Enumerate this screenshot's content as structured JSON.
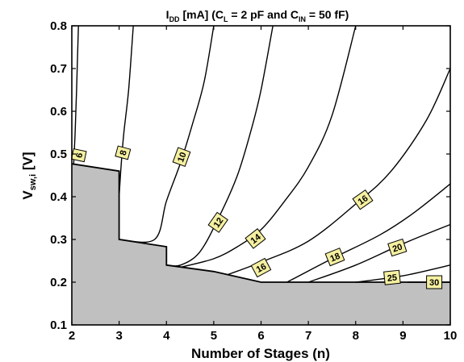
{
  "chart_data": {
    "type": "contour",
    "title": {
      "lead": "I",
      "lead_sub": "DD",
      "part1": " [mA] (C",
      "sub1": "L",
      "part2": " = 2 pF and C",
      "sub2": "IN",
      "part3": " = 50 fF)"
    },
    "xlabel": "Number of Stages (n)",
    "ylabel": {
      "main": "V",
      "sub": "sw,i",
      "unit": "  [V]"
    },
    "xlim": [
      2,
      10
    ],
    "ylim": [
      0.1,
      0.8
    ],
    "xticks": [
      "2",
      "3",
      "4",
      "5",
      "6",
      "7",
      "8",
      "9",
      "10"
    ],
    "yticks": [
      "0.1",
      "0.2",
      "0.3",
      "0.4",
      "0.5",
      "0.6",
      "0.7",
      "0.8"
    ],
    "infeasible_region": {
      "fill_color": "#c0c0c0",
      "boundary": [
        [
          2.0,
          0.477
        ],
        [
          3.0,
          0.46
        ],
        [
          3.0,
          0.3
        ],
        [
          4.0,
          0.283
        ],
        [
          4.0,
          0.24
        ],
        [
          5.0,
          0.225
        ],
        [
          6.0,
          0.2
        ],
        [
          10.0,
          0.2
        ]
      ]
    },
    "contour_lines": [
      {
        "level": "6",
        "points": [
          [
            2.04,
            0.476
          ],
          [
            2.07,
            0.55
          ],
          [
            2.1,
            0.65
          ],
          [
            2.14,
            0.8
          ]
        ]
      },
      {
        "level": "8",
        "points": [
          [
            3.0,
            0.4
          ],
          [
            3.04,
            0.47
          ],
          [
            3.1,
            0.55
          ],
          [
            3.2,
            0.65
          ],
          [
            3.3,
            0.8
          ]
        ]
      },
      {
        "level": "10",
        "points": [
          [
            3.0,
            0.3
          ],
          [
            3.75,
            0.3
          ],
          [
            4.0,
            0.39
          ],
          [
            4.3,
            0.48
          ],
          [
            4.55,
            0.57
          ],
          [
            4.8,
            0.67
          ],
          [
            5.0,
            0.8
          ]
        ]
      },
      {
        "level": "12",
        "points": [
          [
            4.0,
            0.24
          ],
          [
            4.3,
            0.24
          ],
          [
            4.7,
            0.27
          ],
          [
            5.1,
            0.35
          ],
          [
            5.5,
            0.45
          ],
          [
            5.8,
            0.56
          ],
          [
            6.0,
            0.65
          ],
          [
            6.25,
            0.8
          ]
        ]
      },
      {
        "level": "14",
        "points": [
          [
            4.3,
            0.235
          ],
          [
            5.0,
            0.255
          ],
          [
            5.5,
            0.283
          ],
          [
            6.0,
            0.323
          ],
          [
            6.5,
            0.39
          ],
          [
            7.0,
            0.47
          ],
          [
            7.5,
            0.59
          ],
          [
            8.0,
            0.8
          ]
        ]
      },
      {
        "level": "16",
        "points": [
          [
            5.3,
            0.218
          ],
          [
            6.0,
            0.247
          ],
          [
            7.0,
            0.296
          ],
          [
            8.0,
            0.383
          ],
          [
            8.75,
            0.46
          ],
          [
            9.5,
            0.58
          ],
          [
            10.0,
            0.7
          ]
        ]
      },
      {
        "level": "18",
        "points": [
          [
            6.55,
            0.2
          ],
          [
            7.5,
            0.255
          ],
          [
            8.5,
            0.31
          ],
          [
            9.2,
            0.36
          ],
          [
            10.0,
            0.43
          ]
        ]
      },
      {
        "level": "20",
        "points": [
          [
            7.0,
            0.2
          ],
          [
            8.0,
            0.24
          ],
          [
            9.0,
            0.29
          ],
          [
            10.0,
            0.335
          ]
        ]
      },
      {
        "level": "25",
        "points": [
          [
            8.0,
            0.2
          ],
          [
            9.0,
            0.215
          ],
          [
            10.0,
            0.24
          ]
        ]
      },
      {
        "level": "30",
        "points": [
          [
            9.1,
            0.2
          ],
          [
            10.0,
            0.2
          ]
        ]
      }
    ],
    "contour_labels": [
      {
        "text": "6",
        "x": 2.15,
        "y": 0.497,
        "angle": -78
      },
      {
        "text": "8",
        "x": 3.08,
        "y": 0.503,
        "angle": -75
      },
      {
        "text": "10",
        "x": 4.32,
        "y": 0.493,
        "angle": -70
      },
      {
        "text": "12",
        "x": 5.09,
        "y": 0.34,
        "angle": -55
      },
      {
        "text": "14",
        "x": 5.88,
        "y": 0.302,
        "angle": -38
      },
      {
        "text": "16",
        "x": 6.0,
        "y": 0.234,
        "angle": -28
      },
      {
        "text": "16",
        "x": 8.15,
        "y": 0.393,
        "angle": -35
      },
      {
        "text": "18",
        "x": 7.56,
        "y": 0.259,
        "angle": -22
      },
      {
        "text": "20",
        "x": 8.88,
        "y": 0.281,
        "angle": -18
      },
      {
        "text": "25",
        "x": 8.77,
        "y": 0.211,
        "angle": -6
      },
      {
        "text": "30",
        "x": 9.66,
        "y": 0.2,
        "angle": 0
      }
    ],
    "label_box_color": "#f5f0a0",
    "grid": false,
    "legend": "none"
  }
}
